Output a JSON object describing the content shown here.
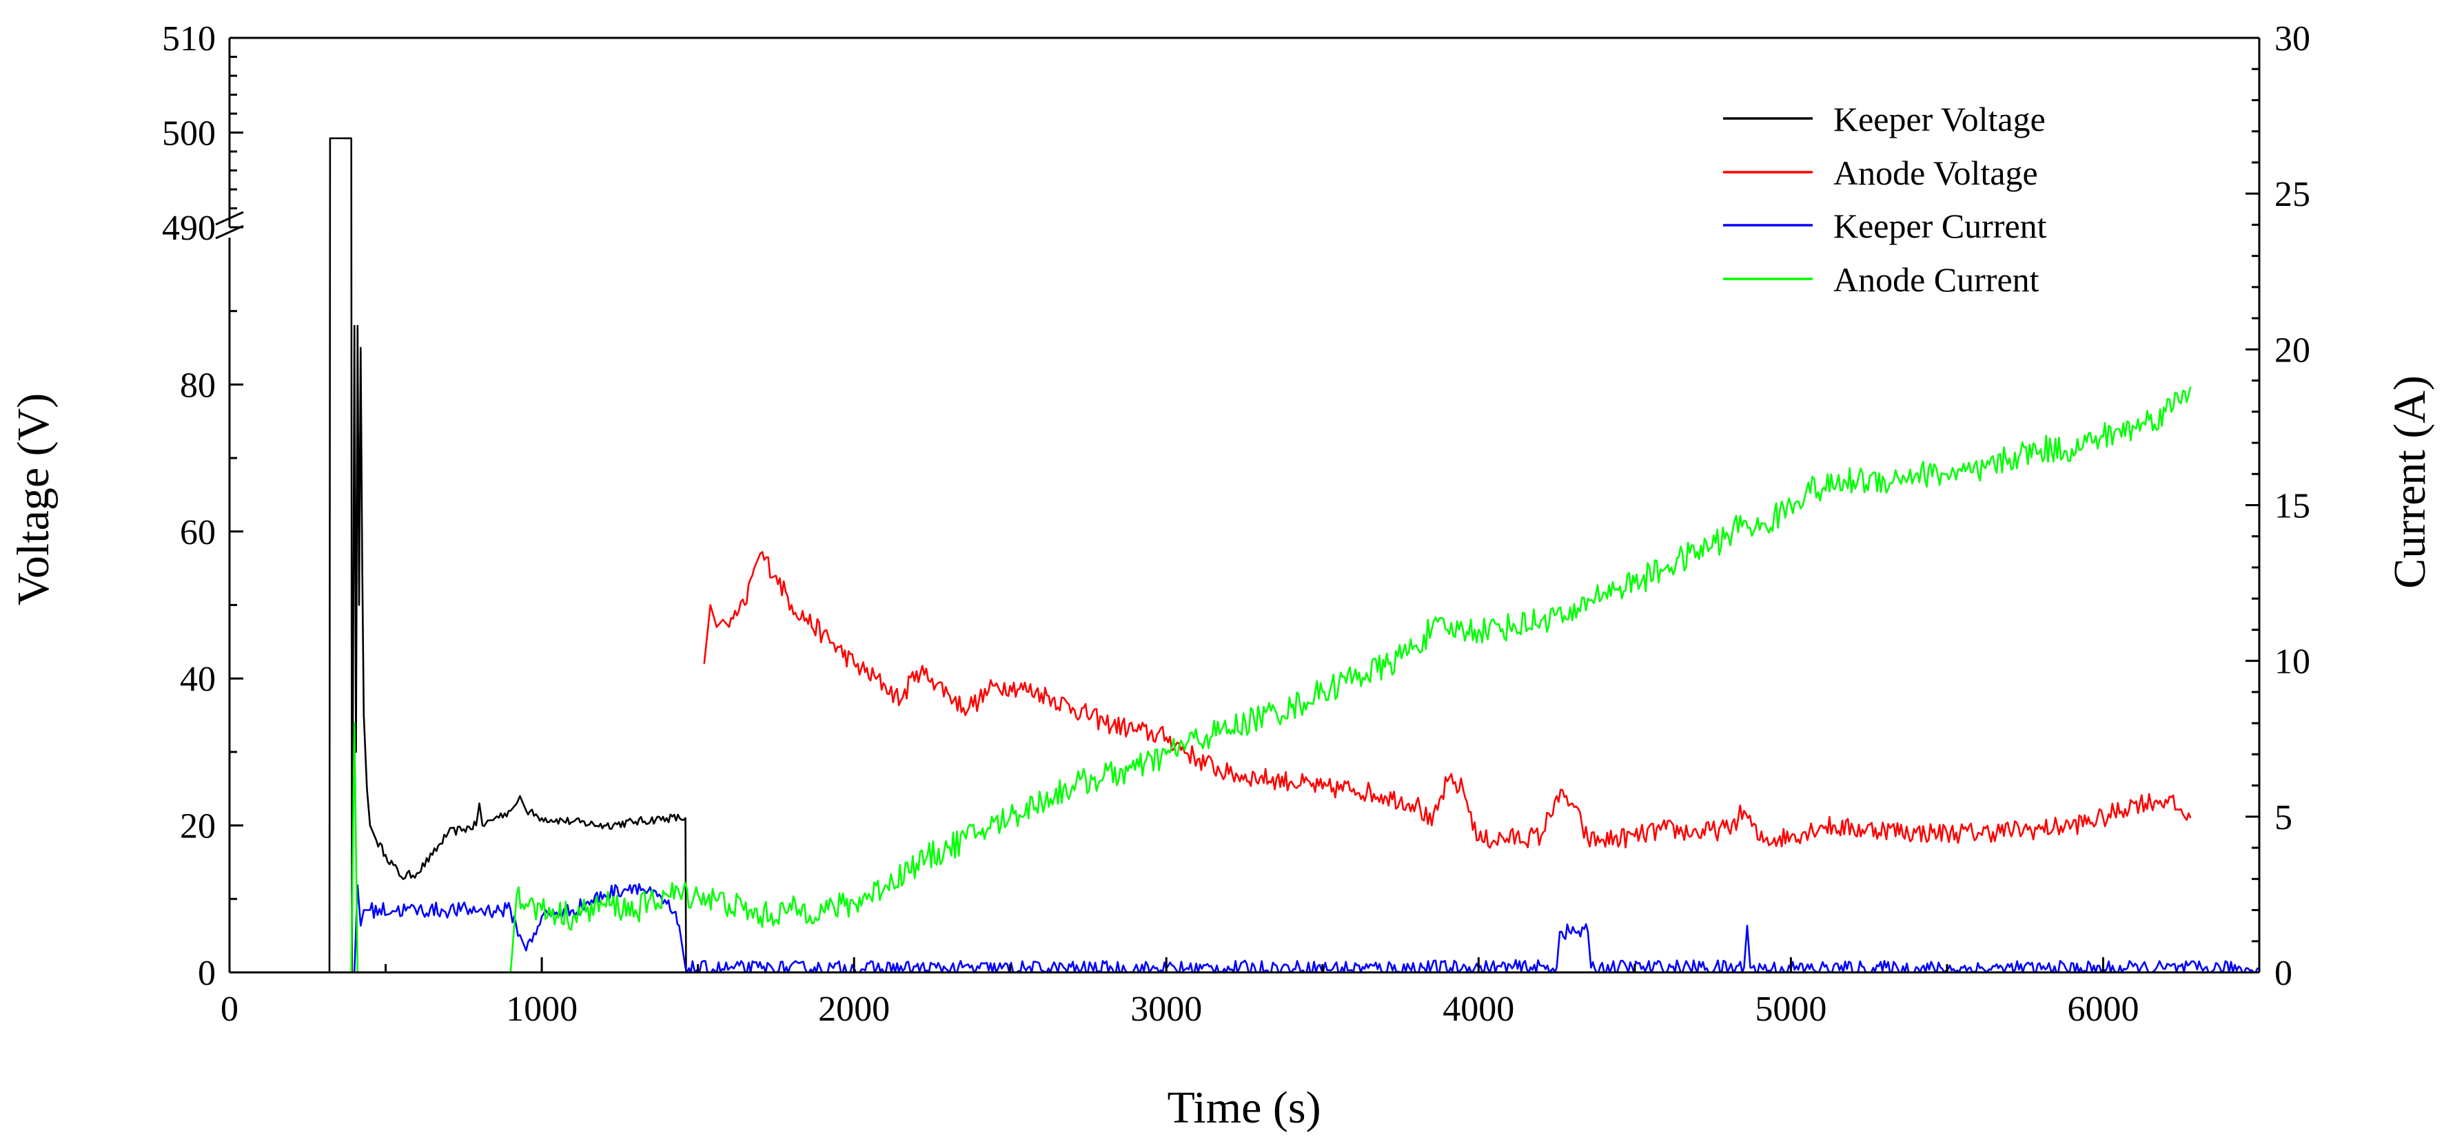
{
  "chart_data": {
    "type": "line",
    "xlabel": "Time (s)",
    "ylabel": "Voltage (V)",
    "y2label": "Current (A)",
    "xlim": [
      0,
      6500
    ],
    "xticks": [
      0,
      1000,
      2000,
      3000,
      4000,
      5000,
      6000
    ],
    "ylim_lower": [
      0,
      100
    ],
    "yticks_lower": [
      0,
      20,
      40,
      60,
      80
    ],
    "ylim_upper": [
      490,
      510
    ],
    "yticks_upper": [
      490,
      500,
      510
    ],
    "y_break": "between 100 and 490",
    "y2lim": [
      0,
      30
    ],
    "y2ticks": [
      0,
      5,
      10,
      15,
      20,
      25,
      30
    ],
    "legend_position": "top-right",
    "series": [
      {
        "name": "Keeper Voltage",
        "axis": "left",
        "color": "#000000",
        "x": [
          0,
          320,
          322,
          330,
          380,
          390,
          392,
          400,
          405,
          410,
          415,
          420,
          425,
          430,
          440,
          450,
          470,
          500,
          550,
          600,
          650,
          700,
          750,
          790,
          800,
          810,
          850,
          900,
          920,
          930,
          950,
          1000,
          1100,
          1200,
          1300,
          1400,
          1460,
          1462,
          6500
        ],
        "y": [
          0,
          0,
          499.4,
          499.4,
          499.4,
          499.4,
          0,
          88,
          30,
          88,
          50,
          85,
          55,
          35,
          25,
          20,
          18,
          16,
          13,
          13.5,
          16,
          19,
          19.5,
          20,
          23,
          20,
          21,
          22,
          23,
          24,
          22,
          21,
          20.5,
          20,
          20.5,
          21,
          21,
          0,
          0
        ]
      },
      {
        "name": "Anode Voltage",
        "axis": "left",
        "color": "#ff0000",
        "x": [
          1520,
          1540,
          1560,
          1580,
          1600,
          1650,
          1680,
          1700,
          1750,
          1800,
          1900,
          2000,
          2100,
          2150,
          2200,
          2250,
          2300,
          2350,
          2400,
          2450,
          2500,
          2600,
          2700,
          2800,
          2900,
          3000,
          3100,
          3200,
          3300,
          3400,
          3500,
          3600,
          3700,
          3800,
          3850,
          3900,
          3950,
          4000,
          4200,
          4250,
          4300,
          4350,
          4400,
          4500,
          4600,
          4700,
          4800,
          4850,
          4900,
          5000,
          5100,
          5200,
          5300,
          5400,
          5500,
          5600,
          5700,
          5800,
          5900,
          6000,
          6100,
          6200,
          6280
        ],
        "y": [
          42,
          50,
          47,
          48,
          47,
          50,
          55,
          57,
          54,
          50,
          46,
          42,
          39,
          37,
          41,
          40,
          38,
          36,
          37,
          39,
          39,
          38,
          36,
          34,
          33,
          32,
          29,
          27,
          26.5,
          26,
          25,
          25,
          24,
          23,
          20,
          26,
          25,
          18,
          18.5,
          24,
          23,
          18,
          18,
          18.5,
          19.5,
          19,
          19.5,
          22,
          18,
          18.5,
          20,
          19.5,
          19.5,
          19,
          19,
          19,
          19.3,
          19.5,
          20,
          21,
          23,
          23.5,
          21
        ]
      },
      {
        "name": "Keeper Current",
        "axis": "right",
        "color": "#0000ff",
        "x": [
          0,
          400,
          410,
          420,
          430,
          450,
          800,
          900,
          930,
          950,
          1000,
          1100,
          1200,
          1300,
          1400,
          1440,
          1460,
          1500,
          2000,
          3000,
          4000,
          4250,
          4260,
          4350,
          4360,
          4850,
          4860,
          4870,
          5000,
          6000,
          6500
        ],
        "y": [
          0,
          0,
          2.8,
          1.5,
          2.0,
          2.0,
          2.0,
          2.0,
          1.2,
          0.7,
          1.8,
          2.0,
          2.5,
          2.8,
          2.2,
          1.5,
          0.15,
          0.12,
          0.12,
          0.12,
          0.15,
          0.15,
          1.3,
          1.3,
          0.15,
          0.15,
          1.5,
          0.15,
          0.12,
          0.12,
          0.12
        ]
      },
      {
        "name": "Anode Current",
        "axis": "right",
        "color": "#00ff00",
        "x": [
          390,
          400,
          410,
          420,
          430,
          900,
          920,
          950,
          1000,
          1100,
          1200,
          1300,
          1400,
          1500,
          1600,
          1700,
          1800,
          1900,
          2000,
          2100,
          2200,
          2300,
          2400,
          2500,
          2600,
          2700,
          2800,
          2900,
          3000,
          3100,
          3200,
          3300,
          3400,
          3500,
          3600,
          3700,
          3800,
          3850,
          3900,
          3950,
          4000,
          4100,
          4200,
          4250,
          4300,
          4350,
          4400,
          4500,
          4600,
          4700,
          4800,
          4850,
          4900,
          5000,
          5050,
          5100,
          5200,
          5300,
          5400,
          5500,
          5600,
          5700,
          5800,
          5900,
          6000,
          6100,
          6200,
          6280
        ],
        "y": [
          0,
          8,
          0,
          0,
          0,
          0,
          2.5,
          2.2,
          2.0,
          1.8,
          2.2,
          2.0,
          2.5,
          2.5,
          2.2,
          1.8,
          2.0,
          2.0,
          2.2,
          2.8,
          3.5,
          4.0,
          4.5,
          5.0,
          5.5,
          6.0,
          6.3,
          6.5,
          7.0,
          7.5,
          7.8,
          8.2,
          8.5,
          9.0,
          9.5,
          9.8,
          10.5,
          11.0,
          11.0,
          11.0,
          11.0,
          11.1,
          11.3,
          11.5,
          11.3,
          12.0,
          12.2,
          12.5,
          13.0,
          13.5,
          14.0,
          14.5,
          14.2,
          15.0,
          15.5,
          15.5,
          15.8,
          15.8,
          16.0,
          16.0,
          16.0,
          16.5,
          16.8,
          16.8,
          17.2,
          17.5,
          18.0,
          18.8
        ]
      }
    ]
  }
}
